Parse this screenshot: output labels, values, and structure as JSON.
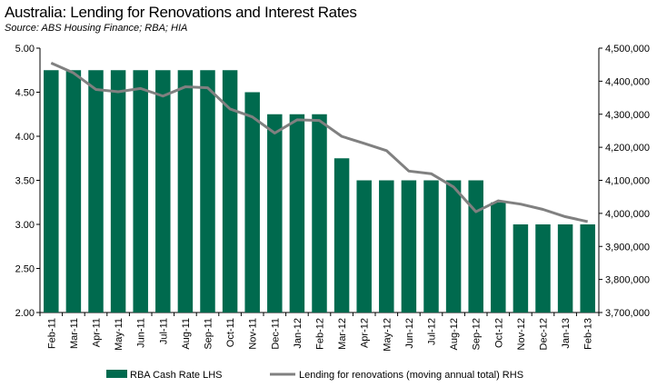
{
  "chart_data": {
    "type": "bar",
    "title": "Australia: Lending for Renovations and Interest Rates",
    "subtitle": "Source: ABS Housing Finance; RBA; HIA",
    "categories": [
      "Feb-11",
      "Mar-11",
      "Apr-11",
      "May-11",
      "Jun-11",
      "Jul-11",
      "Aug-11",
      "Sep-11",
      "Oct-11",
      "Nov-11",
      "Dec-11",
      "Jan-12",
      "Feb-12",
      "Mar-12",
      "Apr-12",
      "May-12",
      "Jun-12",
      "Jul-12",
      "Aug-12",
      "Sep-12",
      "Oct-12",
      "Nov-12",
      "Dec-12",
      "Jan-13",
      "Feb-13"
    ],
    "series": [
      {
        "name": "RBA Cash Rate LHS",
        "type": "bar",
        "axis": "left",
        "color": "#006A4E",
        "values": [
          4.75,
          4.75,
          4.75,
          4.75,
          4.75,
          4.75,
          4.75,
          4.75,
          4.75,
          4.5,
          4.25,
          4.25,
          4.25,
          3.75,
          3.5,
          3.5,
          3.5,
          3.5,
          3.5,
          3.5,
          3.25,
          3.0,
          3.0,
          3.0,
          3.0
        ]
      },
      {
        "name": "Lending for renovations (moving annual total) RHS",
        "type": "line",
        "axis": "right",
        "color": "#808080",
        "values": [
          4455000,
          4425000,
          4375000,
          4368000,
          4378000,
          4355000,
          4383000,
          4380000,
          4316000,
          4292000,
          4243000,
          4283000,
          4281000,
          4233000,
          4212000,
          4190000,
          4128000,
          4120000,
          4080000,
          4005000,
          4038000,
          4028000,
          4012000,
          3990000,
          3975000
        ]
      }
    ],
    "ylim_left": [
      2.0,
      5.0
    ],
    "ylim_right": [
      3700000,
      4500000
    ],
    "yticks_left": [
      "5.00",
      "4.50",
      "4.00",
      "3.50",
      "3.00",
      "2.50",
      "2.00"
    ],
    "yticks_right": [
      "4,500,000",
      "4,400,000",
      "4,300,000",
      "4,200,000",
      "4,100,000",
      "4,000,000",
      "3,900,000",
      "3,800,000",
      "3,700,000"
    ],
    "legend": [
      "RBA Cash Rate LHS",
      "Lending for renovations (moving annual total) RHS"
    ],
    "legend_position": "bottom",
    "grid": false
  }
}
